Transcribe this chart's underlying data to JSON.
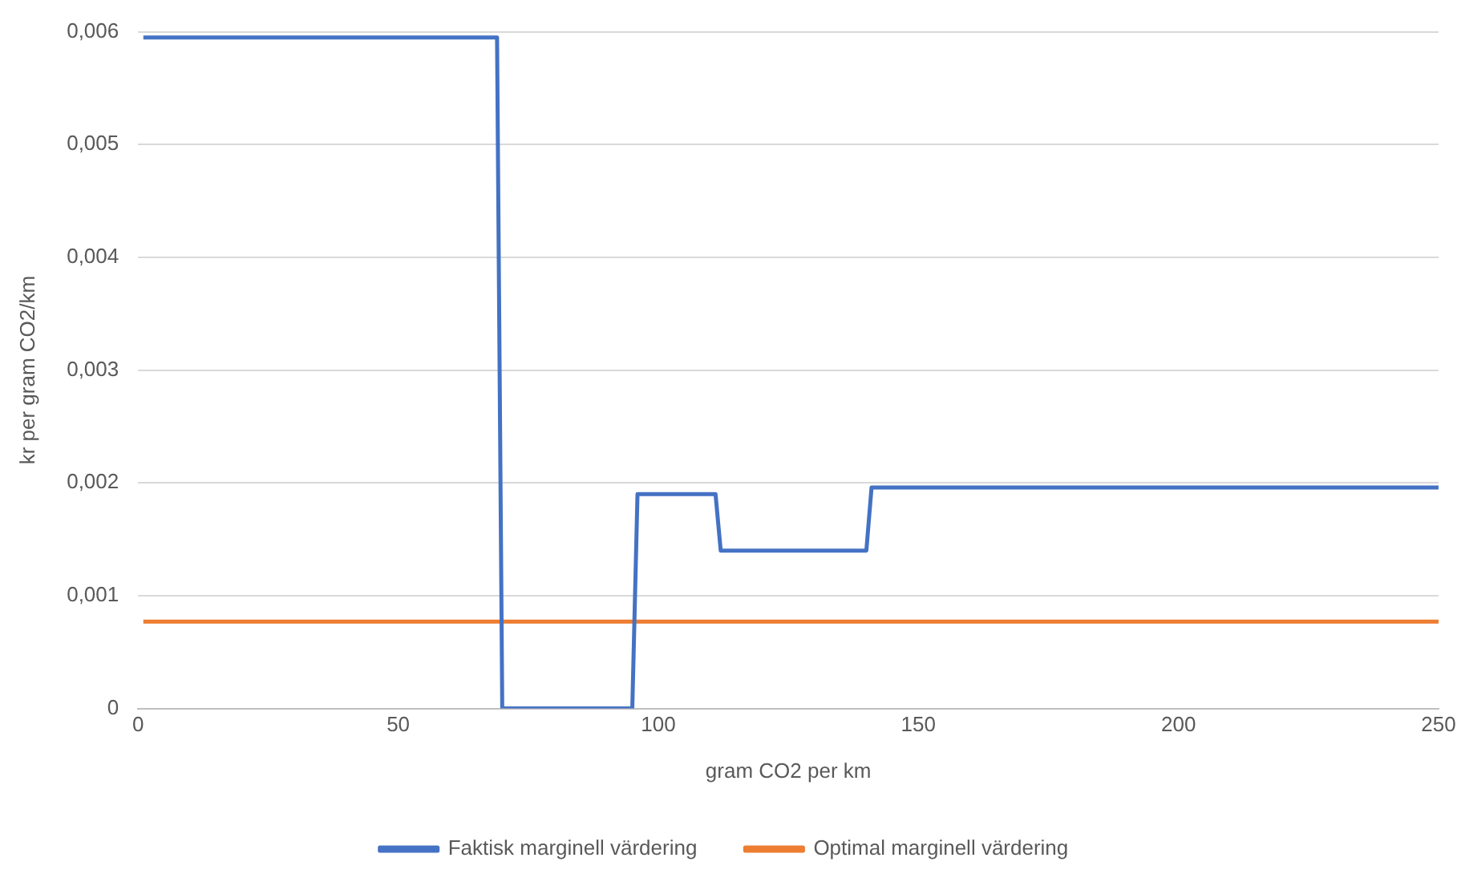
{
  "chart_data": {
    "type": "line",
    "xlabel": "gram CO2 per km",
    "ylabel": "kr per gram CO2/km",
    "xlim": [
      0,
      250
    ],
    "xticks": [
      0,
      50,
      100,
      150,
      200,
      250
    ],
    "ylim": [
      0,
      0.006
    ],
    "yticks": [
      0,
      {
        "value": 0.001,
        "label": "0,001"
      },
      {
        "value": 0.002,
        "label": "0,002"
      },
      {
        "value": 0.003,
        "label": "0,003"
      },
      {
        "value": 0.004,
        "label": "0,004"
      },
      {
        "value": 0.005,
        "label": "0,005"
      },
      {
        "value": 0.006,
        "label": "0,006"
      }
    ],
    "grid": "y",
    "legend": "bottom",
    "marker": "none",
    "line_style": "solid",
    "series": [
      {
        "name": "Faktisk marginell värdering",
        "color": "#4472c4",
        "x": [
          1,
          69,
          70,
          95,
          96,
          111,
          112,
          140,
          141,
          250
        ],
        "values": [
          0.00595,
          0.00595,
          0,
          0,
          0.0019,
          0.0019,
          0.0014,
          0.0014,
          0.00196,
          0.00196
        ]
      },
      {
        "name": "Optimal marginell värdering",
        "color": "#ed7d31",
        "x": [
          1,
          250
        ],
        "values": [
          0.00077,
          0.00077
        ]
      }
    ]
  }
}
